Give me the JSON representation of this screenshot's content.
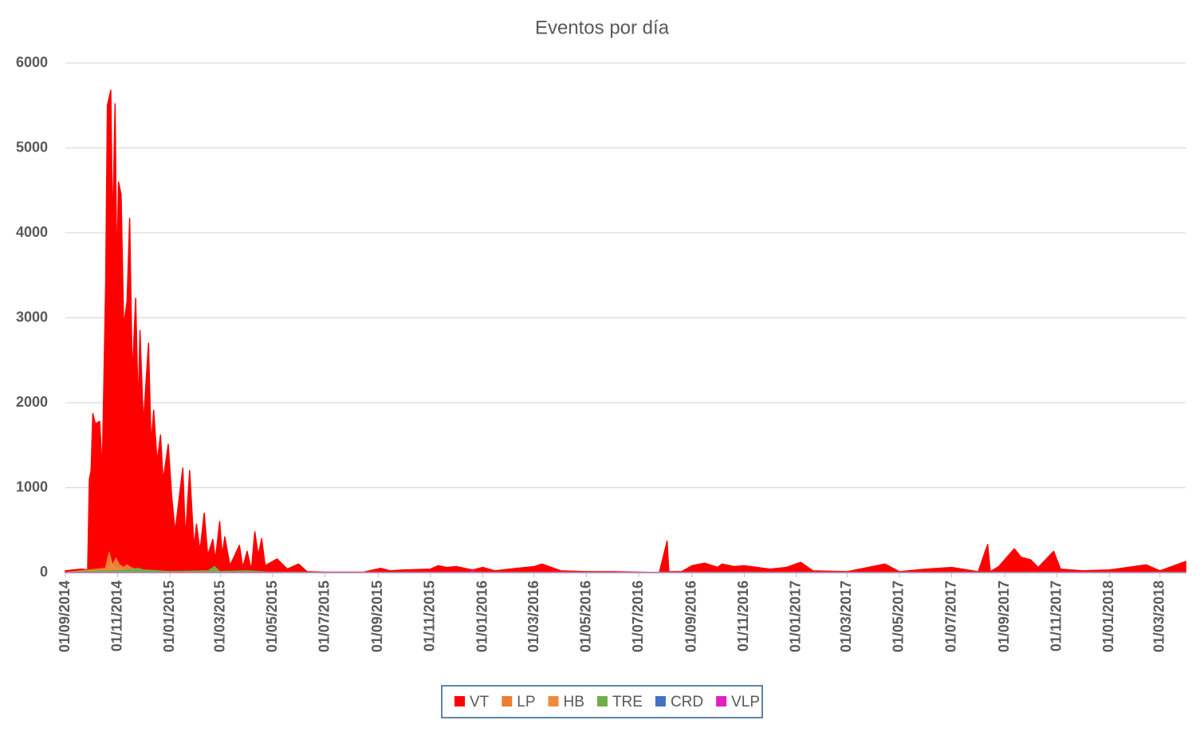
{
  "chart_data": {
    "type": "area",
    "title": "Eventos por día",
    "xlim": [
      "01/09/2014",
      "31/03/2018"
    ],
    "xticks": [
      "01/09/2014",
      "01/11/2014",
      "01/01/2015",
      "01/03/2015",
      "01/05/2015",
      "01/07/2015",
      "01/09/2015",
      "01/11/2015",
      "01/01/2016",
      "01/03/2016",
      "01/05/2016",
      "01/07/2016",
      "01/09/2016",
      "01/11/2016",
      "01/01/2017",
      "01/03/2017",
      "01/05/2017",
      "01/07/2017",
      "01/09/2017",
      "01/11/2017",
      "01/01/2018",
      "01/03/2018"
    ],
    "ylim": [
      0,
      6000
    ],
    "yticks": [
      0,
      1000,
      2000,
      3000,
      4000,
      5000,
      6000
    ],
    "grid": true,
    "legend": "bottom",
    "series": [
      {
        "name": "VT",
        "color": "#ff0000",
        "x": [
          "01/09/2014",
          "10/09/2014",
          "20/09/2014",
          "27/09/2014",
          "29/09/2014",
          "01/10/2014",
          "03/10/2014",
          "06/10/2014",
          "11/10/2014",
          "14/10/2014",
          "18/10/2014",
          "20/10/2014",
          "24/10/2014",
          "26/10/2014",
          "29/10/2014",
          "31/10/2014",
          "02/11/2014",
          "05/11/2014",
          "08/11/2014",
          "12/11/2014",
          "15/11/2014",
          "18/11/2014",
          "22/11/2014",
          "25/11/2014",
          "27/11/2014",
          "01/12/2014",
          "07/12/2014",
          "10/12/2014",
          "13/12/2014",
          "17/12/2014",
          "21/12/2014",
          "24/12/2014",
          "30/12/2014",
          "03/01/2015",
          "07/01/2015",
          "16/01/2015",
          "19/01/2015",
          "24/01/2015",
          "29/01/2015",
          "01/02/2015",
          "05/02/2015",
          "10/02/2015",
          "14/02/2015",
          "20/02/2015",
          "23/02/2015",
          "28/02/2015",
          "03/03/2015",
          "06/03/2015",
          "12/03/2015",
          "23/03/2015",
          "27/03/2015",
          "01/04/2015",
          "06/04/2015",
          "10/04/2015",
          "14/04/2015",
          "18/04/2015",
          "22/04/2015",
          "06/05/2015",
          "18/05/2015",
          "31/05/2015",
          "10/06/2015",
          "01/07/2015",
          "15/08/2015",
          "04/09/2015",
          "15/09/2015",
          "01/10/2015",
          "01/11/2015",
          "10/11/2015",
          "20/11/2015",
          "01/12/2015",
          "20/12/2015",
          "01/01/2016",
          "15/01/2016",
          "01/02/2016",
          "01/03/2016",
          "10/03/2016",
          "01/04/2016",
          "01/05/2016",
          "01/06/2016",
          "01/07/2016",
          "25/07/2016",
          "03/08/2016",
          "05/08/2016",
          "20/08/2016",
          "01/09/2016",
          "16/09/2016",
          "01/10/2016",
          "06/10/2016",
          "20/10/2016",
          "01/11/2016",
          "01/12/2016",
          "20/12/2016",
          "06/01/2017",
          "20/01/2017",
          "01/03/2017",
          "14/04/2017",
          "01/05/2017",
          "01/06/2017",
          "01/07/2017",
          "01/08/2017",
          "12/08/2017",
          "15/08/2017",
          "25/08/2017",
          "12/09/2017",
          "20/09/2017",
          "01/10/2017",
          "10/10/2017",
          "28/10/2017",
          "05/11/2017",
          "01/12/2017",
          "01/01/2018",
          "13/02/2018",
          "01/03/2018",
          "31/03/2018"
        ],
        "values": [
          20,
          30,
          40,
          30,
          1100,
          1200,
          1870,
          1750,
          1780,
          1200,
          3400,
          5500,
          5680,
          4000,
          5520,
          3500,
          4600,
          4450,
          2900,
          3200,
          4170,
          2300,
          3230,
          1900,
          2850,
          1750,
          2700,
          1500,
          1910,
          1300,
          1620,
          1080,
          1510,
          900,
          480,
          1230,
          400,
          1200,
          300,
          570,
          250,
          700,
          200,
          390,
          150,
          600,
          200,
          420,
          80,
          320,
          60,
          250,
          30,
          480,
          200,
          400,
          80,
          160,
          40,
          100,
          10,
          5,
          5,
          50,
          20,
          30,
          40,
          80,
          60,
          70,
          30,
          60,
          20,
          40,
          70,
          100,
          20,
          10,
          10,
          5,
          0,
          370,
          10,
          10,
          80,
          110,
          60,
          100,
          70,
          80,
          40,
          60,
          120,
          20,
          10,
          100,
          10,
          40,
          60,
          10,
          330,
          10,
          70,
          280,
          180,
          150,
          60,
          250,
          40,
          20,
          30,
          90,
          20,
          130
        ]
      },
      {
        "name": "LP",
        "color": "#ed7d31",
        "x": [
          "01/09/2014",
          "18/10/2014",
          "22/10/2014",
          "26/10/2014",
          "30/10/2014",
          "03/11/2014",
          "08/11/2014",
          "12/11/2014",
          "16/11/2014",
          "22/11/2014",
          "01/12/2014",
          "31/03/2018"
        ],
        "values": [
          0,
          50,
          240,
          80,
          170,
          90,
          60,
          90,
          60,
          40,
          0,
          0
        ]
      },
      {
        "name": "HB",
        "color": "#f08a3c",
        "x": [
          "01/09/2014",
          "20/10/2014",
          "24/10/2014",
          "29/10/2014",
          "05/11/2014",
          "15/11/2014",
          "01/12/2014",
          "31/03/2018"
        ],
        "values": [
          0,
          30,
          120,
          60,
          50,
          30,
          0,
          0
        ]
      },
      {
        "name": "TRE",
        "color": "#70ad47",
        "x": [
          "01/09/2014",
          "15/11/2014",
          "25/11/2014",
          "01/12/2014",
          "01/01/2015",
          "15/02/2015",
          "22/02/2015",
          "28/02/2015",
          "01/04/2015",
          "01/05/2015",
          "31/03/2018"
        ],
        "values": [
          0,
          30,
          50,
          30,
          10,
          20,
          70,
          10,
          20,
          0,
          0
        ]
      },
      {
        "name": "CRD",
        "color": "#4472c4",
        "x": [
          "01/09/2014",
          "31/03/2018"
        ],
        "values": [
          0,
          0
        ]
      },
      {
        "name": "VLP",
        "color": "#e020c0",
        "x": [
          "01/09/2014",
          "15/12/2015",
          "20/12/2015",
          "25/12/2015",
          "31/03/2018"
        ],
        "values": [
          0,
          0,
          15,
          0,
          0
        ]
      }
    ]
  }
}
